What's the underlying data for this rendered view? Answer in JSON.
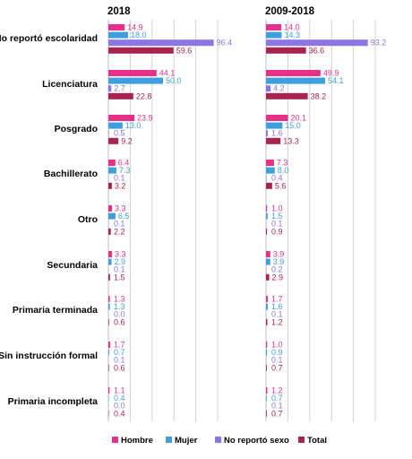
{
  "chart_data": {
    "type": "bar",
    "orientation": "horizontal",
    "panels": [
      "2018",
      "2009-2018"
    ],
    "categories": [
      "No reportó escolaridad",
      "Licenciatura",
      "Posgrado",
      "Bachillerato",
      "Otro",
      "Secundaria",
      "Primaria terminada",
      "Sin instrucción formal",
      "Primaria incompleta"
    ],
    "series": [
      {
        "name": "Hombre",
        "color": "#e8308a",
        "values_by_panel": [
          [
            14.9,
            44.1,
            23.9,
            6.4,
            3.3,
            3.3,
            1.3,
            1.7,
            1.1
          ],
          [
            14.0,
            49.9,
            20.1,
            7.3,
            1.0,
            3.9,
            1.7,
            1.0,
            1.2
          ]
        ]
      },
      {
        "name": "Mujer",
        "color": "#3f9fde",
        "values_by_panel": [
          [
            18.0,
            50.0,
            13.0,
            7.3,
            6.5,
            2.9,
            1.3,
            0.7,
            0.4
          ],
          [
            14.3,
            54.1,
            15.0,
            8.0,
            1.5,
            3.9,
            1.6,
            0.9,
            0.7
          ]
        ]
      },
      {
        "name": "No reportó sexo",
        "color": "#8c75e6",
        "values_by_panel": [
          [
            96.4,
            2.7,
            0.5,
            0.1,
            0.1,
            0.1,
            0.0,
            0.1,
            0.0
          ],
          [
            93.2,
            4.2,
            1.6,
            0.4,
            0.1,
            0.2,
            0.1,
            0.1,
            0.1
          ]
        ]
      },
      {
        "name": "Total",
        "color": "#a8234f",
        "values_by_panel": [
          [
            59.6,
            22.8,
            9.2,
            3.2,
            2.2,
            1.5,
            0.6,
            0.6,
            0.4
          ],
          [
            36.6,
            38.2,
            13.3,
            5.6,
            0.9,
            2.9,
            1.2,
            0.7,
            0.7
          ]
        ]
      }
    ],
    "xlim": [
      0,
      100
    ],
    "grid": true,
    "legend_position": "bottom"
  }
}
